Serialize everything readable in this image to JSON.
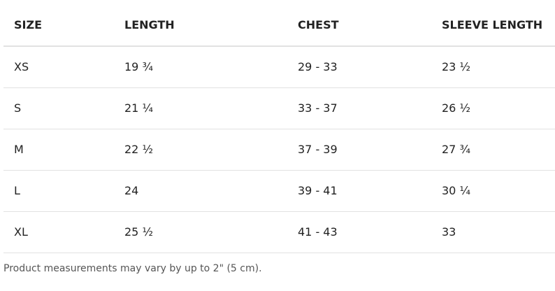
{
  "table": {
    "headers": [
      "SIZE",
      "LENGTH",
      "CHEST",
      "SLEEVE LENGTH"
    ],
    "rows": [
      [
        "XS",
        "19 ¾",
        "29 - 33",
        "23 ½"
      ],
      [
        "S",
        "21 ¼",
        "33 - 37",
        "26 ½"
      ],
      [
        "M",
        "22 ½",
        "37 - 39",
        "27 ¾"
      ],
      [
        "L",
        "24",
        "39 - 41",
        "30 ¼"
      ],
      [
        "XL",
        "25 ½",
        "41 - 43",
        "33"
      ]
    ]
  },
  "footnote": "Product measurements may vary by up to 2\" (5 cm)."
}
